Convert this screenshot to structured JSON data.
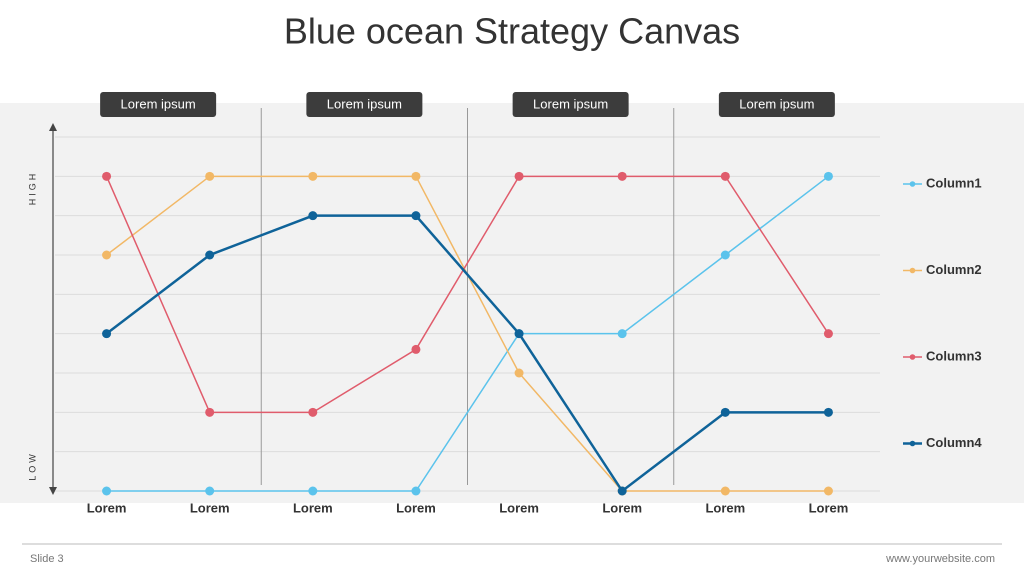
{
  "chart_data": {
    "type": "line",
    "title": "Blue ocean Strategy Canvas",
    "y_high_label": "HIGH",
    "y_low_label": "LOW",
    "sections": [
      "Lorem ipsum",
      "Lorem ipsum",
      "Lorem ipsum",
      "Lorem ipsum"
    ],
    "categories": [
      "Lorem",
      "Lorem",
      "Lorem",
      "Lorem",
      "Lorem",
      "Lorem",
      "Lorem",
      "Lorem"
    ],
    "ylim": [
      0,
      9
    ],
    "series": [
      {
        "name": "Column1",
        "color": "#5bc3ec",
        "values": [
          0,
          0,
          0,
          0,
          4,
          4,
          6,
          8
        ]
      },
      {
        "name": "Column2",
        "color": "#f2b866",
        "values": [
          6,
          8,
          8,
          8,
          3,
          0,
          0,
          0
        ]
      },
      {
        "name": "Column3",
        "color": "#e05c6c",
        "values": [
          8,
          2,
          2,
          3.6,
          8,
          8,
          8,
          4
        ]
      },
      {
        "name": "Column4",
        "color": "#0f6399",
        "values": [
          4,
          6,
          7,
          7,
          4,
          0,
          2,
          2
        ]
      }
    ],
    "legend": "right",
    "footer_left": "Slide 3",
    "footer_right": "www.yourwebsite.com"
  }
}
